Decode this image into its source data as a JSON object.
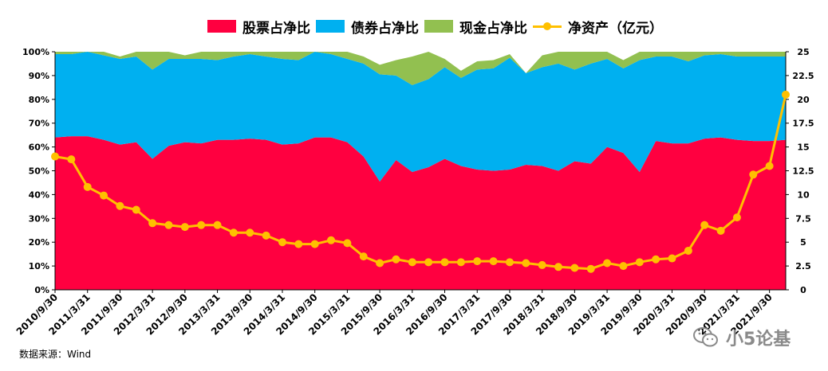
{
  "chart_data": {
    "type": "area",
    "categories": [
      "2010/9/30",
      "2010/12/31",
      "2011/3/31",
      "2011/6/30",
      "2011/9/30",
      "2011/12/31",
      "2012/3/31",
      "2012/6/30",
      "2012/9/30",
      "2012/12/31",
      "2013/3/31",
      "2013/6/30",
      "2013/9/30",
      "2013/12/31",
      "2014/3/31",
      "2014/6/30",
      "2014/9/30",
      "2014/12/31",
      "2015/3/31",
      "2015/6/30",
      "2015/9/30",
      "2015/12/31",
      "2016/3/31",
      "2016/6/30",
      "2016/9/30",
      "2016/12/31",
      "2017/3/31",
      "2017/6/30",
      "2017/9/30",
      "2017/12/31",
      "2018/3/31",
      "2018/6/30",
      "2018/9/30",
      "2018/12/31",
      "2019/3/31",
      "2019/6/30",
      "2019/9/30",
      "2019/12/31",
      "2020/3/31",
      "2020/6/30",
      "2020/9/30",
      "2020/12/31",
      "2021/3/31",
      "2021/6/30",
      "2021/9/30",
      "2021/12/31"
    ],
    "x_tick_labels": [
      "2010/9/30",
      "2011/3/31",
      "2011/9/30",
      "2012/3/31",
      "2012/9/30",
      "2013/3/31",
      "2013/9/30",
      "2014/3/31",
      "2014/9/30",
      "2015/3/31",
      "2015/9/30",
      "2016/3/31",
      "2016/9/30",
      "2017/3/31",
      "2017/9/30",
      "2018/3/31",
      "2018/9/30",
      "2019/3/31",
      "2019/9/30",
      "2020/3/31",
      "2020/9/30",
      "2021/3/31",
      "2021/9/30"
    ],
    "series": [
      {
        "name": "股票占净比",
        "kind": "stacked-area",
        "color": "#ff0040",
        "values": [
          64,
          64.5,
          64.5,
          63,
          61,
          62,
          55,
          60.5,
          62,
          61.5,
          63,
          63,
          63.5,
          63,
          61,
          61.5,
          64,
          64,
          62,
          56,
          45.5,
          54.5,
          49.5,
          51.5,
          55,
          52,
          50.5,
          50,
          50.5,
          52.5,
          52,
          50,
          54,
          53,
          60,
          57.5,
          49.5,
          62.5,
          61.5,
          61.5,
          63.5,
          64,
          63,
          62.5,
          62.5,
          63
        ]
      },
      {
        "name": "债券占净比",
        "kind": "stacked-area",
        "color": "#00b0f0",
        "values": [
          35,
          34.5,
          35.5,
          35.5,
          36,
          36,
          37.5,
          36.5,
          35,
          35.5,
          33.5,
          35,
          35.5,
          35,
          36,
          35,
          36,
          35,
          35,
          39,
          45,
          35.5,
          36.5,
          37,
          38.5,
          37,
          42,
          43,
          47,
          38.5,
          41.5,
          45,
          38.5,
          42,
          37,
          35.5,
          47,
          35.5,
          36.5,
          34.5,
          35,
          35,
          35,
          35.5,
          35.5,
          35
        ]
      },
      {
        "name": "现金占净比",
        "kind": "stacked-area",
        "color": "#92c050",
        "values": [
          1,
          1,
          0,
          1.5,
          1,
          2,
          7.5,
          3,
          1.5,
          3,
          3.5,
          2,
          1,
          2,
          3,
          3.5,
          0,
          1,
          3,
          3,
          4,
          6.5,
          12,
          11.5,
          3.5,
          3,
          3.5,
          3.5,
          1.5,
          0,
          5,
          5,
          7.5,
          5,
          3,
          3.5,
          3.5,
          2,
          2,
          4,
          1.5,
          1,
          2,
          2,
          2,
          2
        ]
      },
      {
        "name": "净资产（亿元）",
        "kind": "line",
        "axis": "right",
        "color": "#ffc000",
        "values": [
          14,
          13.7,
          10.8,
          9.9,
          8.8,
          8.4,
          7,
          6.8,
          6.6,
          6.8,
          6.8,
          6,
          6,
          5.7,
          5,
          4.8,
          4.8,
          5.2,
          4.9,
          3.5,
          2.8,
          3.2,
          2.9,
          2.9,
          2.9,
          2.9,
          3,
          3,
          2.9,
          2.8,
          2.6,
          2.4,
          2.3,
          2.2,
          2.8,
          2.5,
          2.9,
          3.2,
          3.3,
          4.1,
          6.8,
          6.2,
          7.6,
          12.1,
          13,
          20.5
        ]
      }
    ],
    "y_left": {
      "min": 0,
      "max": 100,
      "ticks": [
        "0%",
        "10%",
        "20%",
        "30%",
        "40%",
        "50%",
        "60%",
        "70%",
        "80%",
        "90%",
        "100%"
      ]
    },
    "y_right": {
      "min": 0,
      "max": 25,
      "ticks": [
        "0",
        "2.5",
        "5",
        "7.5",
        "10",
        "12.5",
        "15",
        "17.5",
        "20",
        "22.5",
        "25"
      ]
    },
    "legend_position": "top",
    "grid": false
  },
  "footer": {
    "source": "数据来源：Wind"
  },
  "watermark": {
    "text": "小5论基",
    "icon": "wechat-icon"
  }
}
